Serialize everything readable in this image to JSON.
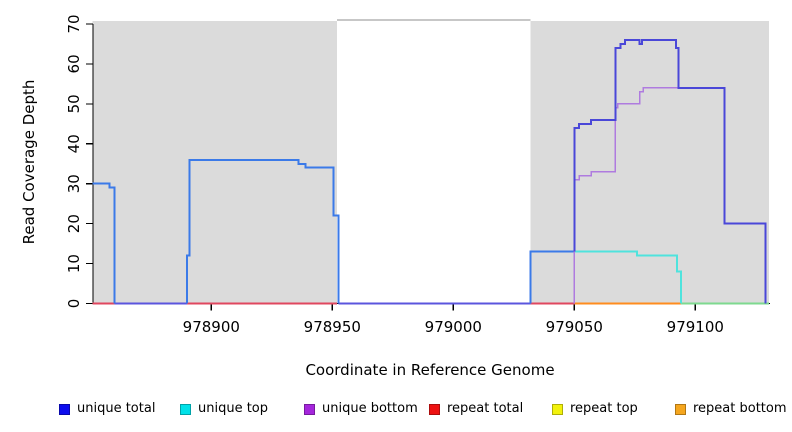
{
  "chart_data": {
    "type": "line",
    "subtype": "step-coverage-plot",
    "title": "",
    "xlabel": "Coordinate in Reference Genome",
    "ylabel": "Read Coverage Depth",
    "xlim": [
      978851,
      979131
    ],
    "ylim": [
      0,
      71
    ],
    "x_ticks": [
      978900,
      978950,
      979000,
      979050,
      979100
    ],
    "y_ticks": [
      0,
      10,
      20,
      30,
      40,
      50,
      60,
      70
    ],
    "grid": false,
    "shaded_regions": [
      {
        "name": "left-shaded-region",
        "x1": 978851,
        "x2": 978952,
        "fill": "#DBDBDB"
      },
      {
        "name": "right-shaded-region",
        "x1": 979032,
        "x2": 979130.5,
        "fill": "#DBDBDB"
      }
    ],
    "gap_top_edge": {
      "x1": 978952,
      "x2": 979032,
      "color": "#8f8f8f"
    },
    "lines": [
      {
        "name": "repeat-total",
        "color": "#E0475F",
        "width": 2,
        "points": [
          [
            978851,
            0
          ],
          [
            978860,
            0
          ]
        ]
      },
      {
        "name": "repeat-total",
        "color": "#E0475F",
        "width": 2,
        "points": [
          [
            978890,
            0
          ],
          [
            978952,
            0
          ]
        ]
      },
      {
        "name": "repeat-total",
        "color": "#E0475F",
        "width": 2,
        "points": [
          [
            979032,
            0
          ],
          [
            979050,
            0
          ]
        ]
      },
      {
        "name": "repeat-bottom",
        "color": "#FF8C1E",
        "width": 2,
        "points": [
          [
            979050,
            0
          ],
          [
            979094,
            0
          ]
        ]
      },
      {
        "name": "repeat-top-under-unique-top",
        "color": "#7ED98F",
        "width": 2,
        "points": [
          [
            979094,
            0
          ],
          [
            979130.5,
            0
          ]
        ]
      },
      {
        "name": "unique-total-baseline",
        "color": "#5B55DE",
        "width": 2,
        "points": [
          [
            978860,
            0
          ],
          [
            978890,
            0
          ]
        ]
      },
      {
        "name": "unique-total-baseline",
        "color": "#5B55DE",
        "width": 2,
        "points": [
          [
            978952.5,
            0
          ],
          [
            979032,
            0
          ]
        ]
      },
      {
        "name": "unique-total-left",
        "color": "#3B7AE8",
        "width": 2,
        "points": [
          [
            978851,
            30
          ],
          [
            978858,
            30
          ],
          [
            978858,
            29
          ],
          [
            978860,
            29
          ],
          [
            978860,
            0
          ]
        ]
      },
      {
        "name": "unique-total-left",
        "color": "#3B7AE8",
        "width": 2,
        "points": [
          [
            978890,
            0
          ],
          [
            978890,
            12
          ],
          [
            978891,
            12
          ],
          [
            978891,
            36
          ],
          [
            978936,
            36
          ],
          [
            978936,
            35
          ],
          [
            978939,
            35
          ],
          [
            978939,
            34
          ],
          [
            978950.5,
            34
          ],
          [
            978950.5,
            22
          ],
          [
            978952.5,
            22
          ],
          [
            978952.5,
            0
          ]
        ]
      },
      {
        "name": "unique-total-left",
        "color": "#3B7AE8",
        "width": 2,
        "points": [
          [
            979032,
            0
          ],
          [
            979032,
            13
          ],
          [
            979050,
            13
          ]
        ]
      },
      {
        "name": "unique-top",
        "color": "#4FE3DD",
        "width": 2,
        "points": [
          [
            979050,
            13
          ],
          [
            979076,
            13
          ],
          [
            979076,
            12
          ],
          [
            979092.5,
            12
          ],
          [
            979092.5,
            8
          ],
          [
            979094,
            8
          ],
          [
            979094,
            0
          ]
        ]
      },
      {
        "name": "unique-bottom",
        "color": "#AF7BDF",
        "width": 1.6,
        "points": [
          [
            979050,
            0
          ],
          [
            979050,
            31
          ],
          [
            979052,
            31
          ],
          [
            979052,
            32
          ],
          [
            979057,
            32
          ],
          [
            979057,
            33
          ],
          [
            979067,
            33
          ],
          [
            979067,
            49
          ],
          [
            979068,
            49
          ],
          [
            979068,
            50
          ],
          [
            979077,
            50
          ],
          [
            979077,
            53
          ],
          [
            979078.5,
            53
          ],
          [
            979078.5,
            54
          ],
          [
            979094,
            54
          ]
        ]
      },
      {
        "name": "unique-total-right",
        "color": "#4A47D8",
        "width": 2,
        "points": [
          [
            979050,
            13
          ],
          [
            979050,
            44
          ],
          [
            979052,
            44
          ],
          [
            979052,
            45
          ],
          [
            979057,
            45
          ],
          [
            979057,
            46
          ],
          [
            979067,
            46
          ],
          [
            979067,
            64
          ],
          [
            979069,
            64
          ],
          [
            979069,
            65
          ],
          [
            979071,
            65
          ],
          [
            979071,
            66
          ],
          [
            979077,
            66
          ],
          [
            979077,
            65
          ],
          [
            979078,
            65
          ],
          [
            979078,
            66
          ],
          [
            979092,
            66
          ],
          [
            979092,
            64
          ],
          [
            979093,
            64
          ],
          [
            979093,
            54
          ],
          [
            979112,
            54
          ],
          [
            979112,
            20
          ],
          [
            979129,
            20
          ],
          [
            979129,
            0
          ]
        ]
      }
    ],
    "legend": [
      {
        "label": "unique total",
        "color": "#0D0DEE"
      },
      {
        "label": "unique top",
        "color": "#00E1E8"
      },
      {
        "label": "unique bottom",
        "color": "#A526DC"
      },
      {
        "label": "repeat total",
        "color": "#EE1212"
      },
      {
        "label": "repeat top",
        "color": "#F2F20C"
      },
      {
        "label": "repeat bottom",
        "color": "#F5A61E"
      }
    ],
    "legend_position": "bottom"
  }
}
